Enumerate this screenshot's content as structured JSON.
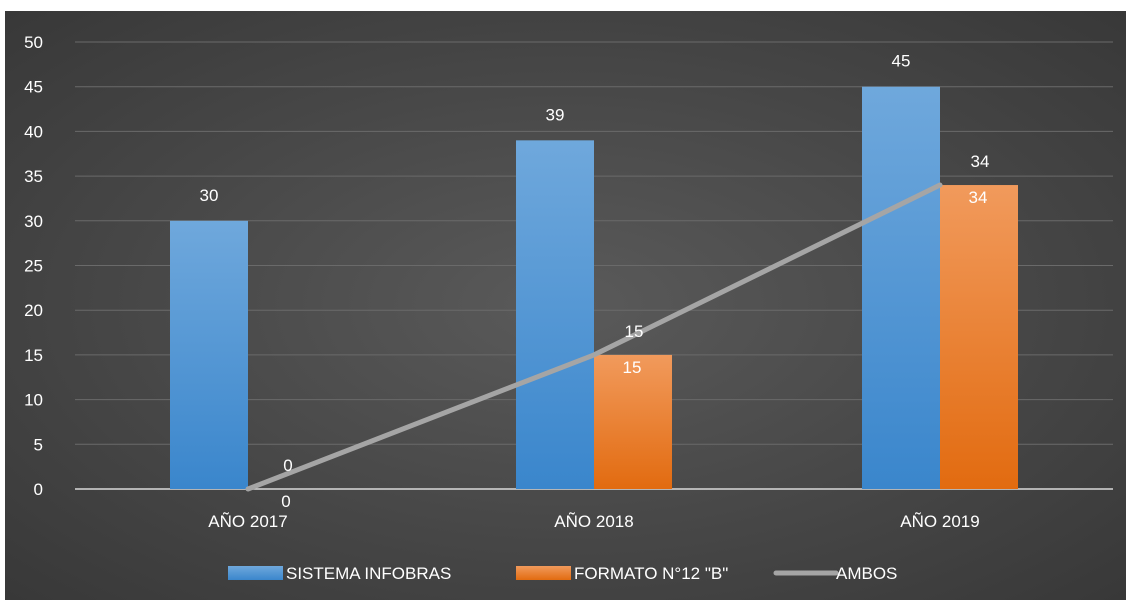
{
  "chart_data": {
    "type": "bar",
    "categories": [
      "AÑO 2017",
      "AÑO 2018",
      "AÑO 2019"
    ],
    "series": [
      {
        "name": "SISTEMA INFOBRAS",
        "kind": "bar",
        "values": [
          30,
          39,
          45
        ],
        "color": "#5b9bd5"
      },
      {
        "name": "FORMATO N°12 \"B\"",
        "kind": "bar",
        "values": [
          0,
          15,
          34
        ],
        "color": "#ed7d31"
      },
      {
        "name": "AMBOS",
        "kind": "line",
        "values": [
          0,
          15,
          34
        ],
        "color": "#a5a5a5"
      }
    ],
    "ylim": [
      0,
      50
    ],
    "yticks": [
      0,
      5,
      10,
      15,
      20,
      25,
      30,
      35,
      40,
      45,
      50
    ],
    "grid": true,
    "legend_position": "bottom",
    "title": "",
    "xlabel": "",
    "ylabel": ""
  }
}
